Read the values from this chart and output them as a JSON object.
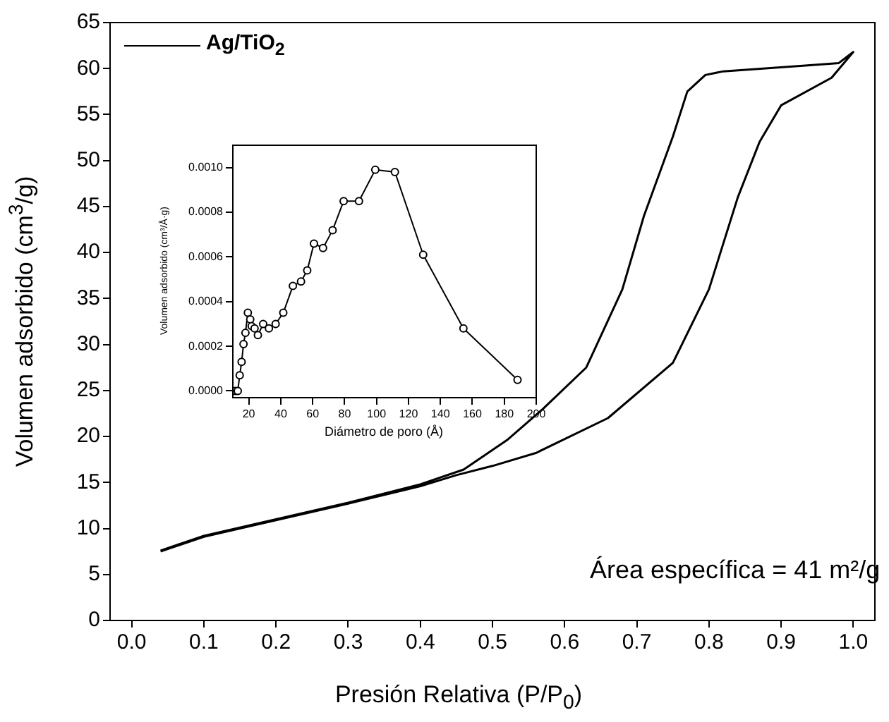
{
  "chart_data": [
    {
      "type": "line",
      "xlabel": "Presión Relativa (P/P$_{0}$)",
      "ylabel": "Volumen adsorbido (cm$^{3}$/g)",
      "xlim": [
        -0.03,
        1.03
      ],
      "ylim": [
        0,
        65
      ],
      "xticks": [
        {
          "value": 0,
          "label": "0.0"
        },
        0.1,
        0.2,
        0.3,
        0.4,
        0.5,
        0.6,
        0.7,
        0.8,
        0.9,
        {
          "value": 1,
          "label": "1.0"
        }
      ],
      "yticks": [
        0,
        5,
        10,
        15,
        20,
        25,
        30,
        35,
        40,
        45,
        50,
        55,
        60,
        65
      ],
      "grid": false,
      "legend": "top left",
      "marker": "none",
      "line_style": "solid",
      "annotations": [
        "Área específica =  41 m²/g"
      ],
      "series": [
        {
          "name": "Ag/TiO$_{2}$",
          "color": "#000000",
          "x": [
            0.04,
            0.1,
            0.2,
            0.3,
            0.4,
            0.45,
            0.5,
            0.56,
            0.66,
            0.75,
            0.8,
            0.84,
            0.87,
            0.9,
            0.97,
            1.0,
            0.98,
            0.93,
            0.82,
            0.795,
            0.77,
            0.75,
            0.71,
            0.68,
            0.63,
            0.57,
            0.52,
            0.46,
            0.4,
            0.3,
            0.2,
            0.1,
            0.04
          ],
          "values": [
            7.5,
            9.1,
            10.9,
            12.7,
            14.6,
            15.8,
            16.8,
            18.2,
            22,
            28,
            36,
            46,
            52,
            56,
            59,
            61.8,
            60.6,
            60.3,
            59.7,
            59.3,
            57.5,
            52.6,
            44,
            36,
            27.5,
            23,
            19.6,
            16.4,
            14.8,
            12.8,
            11,
            9.2,
            7.6
          ]
        }
      ]
    },
    {
      "type": "line",
      "xlabel": "Diámetro de poro (Å)",
      "ylabel": "Volumen adsorbido (cm³/Å·g)",
      "xlim": [
        10,
        200
      ],
      "ylim": [
        -3e-05,
        0.0011
      ],
      "xticks": [
        20,
        40,
        60,
        80,
        100,
        120,
        140,
        160,
        180,
        200
      ],
      "yticks": [
        {
          "value": 0,
          "label": "0.0000"
        },
        {
          "value": 0.0002,
          "label": "0.0002"
        },
        {
          "value": 0.0004,
          "label": "0.0004"
        },
        {
          "value": 0.0006,
          "label": "0.0006"
        },
        {
          "value": 0.0008,
          "label": "0.0008"
        },
        {
          "value": 0.001,
          "label": "0.0010"
        }
      ],
      "grid": false,
      "marker": "circle",
      "line_style": "solid",
      "series": [
        {
          "color": "#000000",
          "x": [
            11.6,
            13.1,
            14.3,
            15.5,
            16.7,
            17.9,
            19.4,
            20.9,
            21.8,
            23.6,
            25.7,
            29,
            32.6,
            36.8,
            41.6,
            47.6,
            52.7,
            56.6,
            60.8,
            66.5,
            72.5,
            79.4,
            89,
            99.2,
            111.5,
            129.2,
            154.4,
            188.3
          ],
          "values": [
            0,
            0,
            7e-05,
            0.00013,
            0.00021,
            0.00026,
            0.00035,
            0.00032,
            0.00029,
            0.00028,
            0.00025,
            0.0003,
            0.00028,
            0.0003,
            0.00035,
            0.00047,
            0.00049,
            0.00054,
            0.00066,
            0.00064,
            0.00072,
            0.00085,
            0.00085,
            0.00099,
            0.00098,
            0.00061,
            0.00028,
            5e-05
          ]
        }
      ]
    }
  ]
}
